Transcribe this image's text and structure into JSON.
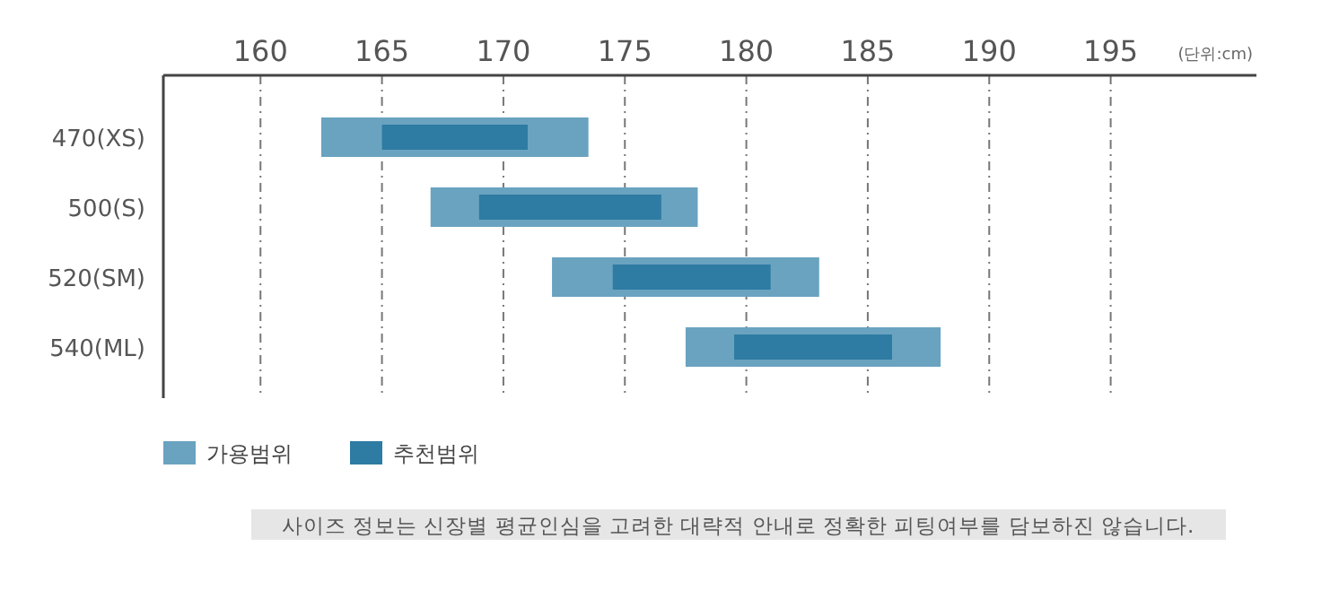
{
  "chart_data": {
    "type": "bar",
    "orientation": "horizontal",
    "categories": [
      "470(XS)",
      "500(S)",
      "520(SM)",
      "540(ML)"
    ],
    "series": [
      {
        "name": "가용범위",
        "color": "#6aa3c0",
        "base": [
          162.5,
          167,
          172,
          177.5
        ],
        "values": [
          11,
          11,
          11,
          10.5
        ]
      },
      {
        "name": "추천범위",
        "color": "#2e7ba3",
        "base": [
          165,
          169,
          174.5,
          179.5
        ],
        "values": [
          6,
          7.5,
          6.5,
          6.5
        ]
      }
    ],
    "xlim": [
      156,
      201
    ],
    "xticks": [
      160,
      165,
      170,
      175,
      180,
      185,
      190,
      195
    ],
    "xlabel": "(단위:cm)",
    "grid": "x",
    "legend": "bottom",
    "annotations": [
      "사이즈 정보는 신장별 평균인심을 고려한 대략적 안내로 정확한 피팅여부를 담보하진 않습니다."
    ]
  }
}
